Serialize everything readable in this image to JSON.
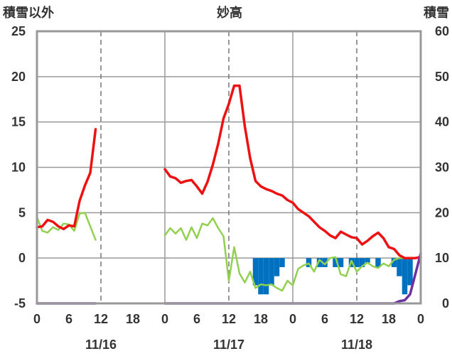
{
  "chart_data": {
    "type": "line",
    "title": "妙高",
    "left_axis_label": "積雪以外",
    "right_axis_label": "積雪",
    "left_ylim": [
      -5,
      25
    ],
    "left_ticks": [
      "25",
      "20",
      "15",
      "10",
      "5",
      "0",
      "-5"
    ],
    "right_ylim": [
      0,
      60
    ],
    "right_ticks": [
      "60",
      "50",
      "40",
      "30",
      "20",
      "10",
      "0"
    ],
    "x_hours_range": [
      0,
      72
    ],
    "x_ticks": [
      "0",
      "6",
      "12",
      "18",
      "0",
      "6",
      "12",
      "18",
      "0",
      "6",
      "12",
      "18",
      "0"
    ],
    "date_labels": [
      "11/16",
      "11/17",
      "11/18"
    ],
    "grid": "dashed vertical at 12:00, solid at day boundaries",
    "colors": {
      "red_series": "#ee1111",
      "green_series": "#92d050",
      "blue_bars": "#0070c0",
      "purple_series": "#7030a0",
      "frame": "#999999"
    },
    "series": [
      {
        "color_key": "red_series",
        "axis": "left",
        "segments": [
          [
            [
              0,
              3.4
            ],
            [
              1,
              3.5
            ],
            [
              2,
              4.2
            ],
            [
              3,
              4
            ],
            [
              4,
              3.5
            ],
            [
              5,
              3.2
            ],
            [
              6,
              3.6
            ],
            [
              7,
              3.5
            ],
            [
              8,
              6.3
            ],
            [
              9,
              8
            ],
            [
              10,
              9.4
            ],
            [
              11,
              14.2
            ]
          ],
          [
            [
              24,
              9.8
            ],
            [
              25,
              9
            ],
            [
              26,
              8.8
            ],
            [
              27,
              8.3
            ],
            [
              28,
              8.5
            ],
            [
              29,
              8.6
            ],
            [
              30,
              7.9
            ],
            [
              31,
              7.1
            ],
            [
              32,
              8.4
            ],
            [
              33,
              10.3
            ],
            [
              34,
              12.6
            ],
            [
              35,
              15.4
            ],
            [
              36,
              17
            ],
            [
              37,
              19
            ],
            [
              38,
              19
            ],
            [
              39,
              14.5
            ],
            [
              40,
              11
            ],
            [
              41,
              8.5
            ],
            [
              42,
              7.9
            ],
            [
              43,
              7.6
            ],
            [
              44,
              7.4
            ],
            [
              45,
              7.1
            ],
            [
              46,
              6.9
            ],
            [
              47,
              6.4
            ],
            [
              48,
              6.1
            ],
            [
              49,
              5.4
            ],
            [
              50,
              5
            ],
            [
              51,
              4.6
            ],
            [
              52,
              4
            ],
            [
              53,
              3.4
            ],
            [
              54,
              3
            ],
            [
              55,
              2.5
            ],
            [
              56,
              2.2
            ],
            [
              57,
              2.9
            ],
            [
              58,
              2.6
            ],
            [
              59,
              2.3
            ],
            [
              60,
              2.2
            ],
            [
              61,
              1.5
            ],
            [
              62,
              1.9
            ],
            [
              63,
              2.4
            ],
            [
              64,
              2.8
            ],
            [
              65,
              2.2
            ],
            [
              66,
              1.2
            ],
            [
              67,
              1
            ],
            [
              68,
              0.3
            ],
            [
              69,
              0
            ],
            [
              70,
              0
            ],
            [
              71,
              0
            ],
            [
              72,
              0.1
            ]
          ]
        ]
      },
      {
        "color_key": "green_series",
        "axis": "left",
        "segments": [
          [
            [
              0,
              4.5
            ],
            [
              1,
              3
            ],
            [
              2,
              2.8
            ],
            [
              3,
              3.4
            ],
            [
              4,
              3.1
            ],
            [
              5,
              3.8
            ],
            [
              6,
              3.7
            ],
            [
              7,
              3
            ],
            [
              8,
              4.9
            ],
            [
              9,
              5
            ],
            [
              10,
              3.5
            ],
            [
              11,
              2
            ]
          ],
          [
            [
              24,
              2.5
            ],
            [
              25,
              3.3
            ],
            [
              26,
              2.7
            ],
            [
              27,
              3.3
            ],
            [
              28,
              2
            ],
            [
              29,
              3.4
            ],
            [
              30,
              2.2
            ],
            [
              31,
              3.8
            ],
            [
              32,
              3.6
            ],
            [
              33,
              4.4
            ],
            [
              34,
              3.3
            ],
            [
              35,
              2.4
            ],
            [
              36,
              -2.5
            ],
            [
              37,
              1.2
            ],
            [
              38,
              -1.7
            ],
            [
              39,
              -2.7
            ],
            [
              40,
              -1.5
            ],
            [
              41,
              -3.3
            ],
            [
              42,
              -2.9
            ],
            [
              43,
              -3
            ],
            [
              44,
              -2.9
            ],
            [
              45,
              -3.3
            ],
            [
              46,
              -3.6
            ],
            [
              47,
              -2.5
            ],
            [
              48,
              -3
            ],
            [
              49,
              -1.2
            ],
            [
              50,
              -0.8
            ],
            [
              51,
              -0.6
            ],
            [
              52,
              -1.5
            ],
            [
              53,
              -0.2
            ],
            [
              54,
              -0.7
            ],
            [
              55,
              0
            ],
            [
              56,
              0.1
            ],
            [
              57,
              -1.8
            ],
            [
              58,
              -2
            ],
            [
              59,
              -0.3
            ],
            [
              60,
              -1.5
            ],
            [
              61,
              -0.9
            ],
            [
              62,
              -0.5
            ],
            [
              63,
              -0.9
            ],
            [
              64,
              -1.1
            ],
            [
              65,
              -0.6
            ],
            [
              66,
              -0.9
            ],
            [
              67,
              -0.2
            ],
            [
              68,
              0
            ],
            [
              69,
              0
            ],
            [
              70,
              0
            ],
            [
              71,
              0
            ],
            [
              72,
              0.2
            ]
          ]
        ]
      },
      {
        "color_key": "purple_series",
        "axis": "right",
        "segments": [
          [
            [
              0,
              0
            ],
            [
              6,
              0
            ],
            [
              11,
              0
            ]
          ],
          [
            [
              24,
              0
            ],
            [
              36,
              0
            ],
            [
              48,
              0
            ],
            [
              60,
              0
            ],
            [
              66,
              0
            ],
            [
              67,
              0
            ],
            [
              68,
              0.5
            ],
            [
              69,
              0.7
            ],
            [
              70,
              2
            ],
            [
              71,
              6.5
            ],
            [
              72,
              11
            ]
          ]
        ]
      }
    ],
    "bars": {
      "color_key": "blue_bars",
      "axis": "left",
      "note": "negative-direction bars below zero line",
      "points": [
        [
          41,
          -3
        ],
        [
          42,
          -4
        ],
        [
          43,
          -4
        ],
        [
          44,
          -3
        ],
        [
          45,
          -2
        ],
        [
          46,
          -1
        ],
        [
          51,
          -1
        ],
        [
          53,
          -1
        ],
        [
          54,
          -1
        ],
        [
          56,
          -1
        ],
        [
          57,
          -1
        ],
        [
          59,
          -1
        ],
        [
          60,
          -1
        ],
        [
          61,
          -1
        ],
        [
          62,
          -0.5
        ],
        [
          64,
          -1
        ],
        [
          67,
          -1
        ],
        [
          68,
          -2
        ],
        [
          69,
          -4
        ],
        [
          70,
          -3
        ]
      ]
    }
  }
}
